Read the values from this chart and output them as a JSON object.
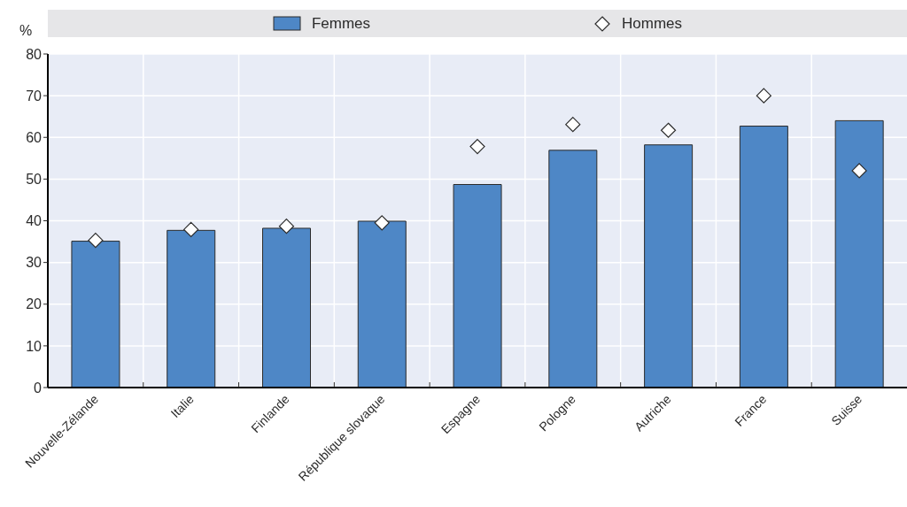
{
  "chart_data": {
    "type": "bar",
    "ylabel": "%",
    "categories": [
      "Nouvelle-Zélande",
      "Italie",
      "Finlande",
      "République slovaque",
      "Espagne",
      "Pologne",
      "Autriche",
      "France",
      "Suisse"
    ],
    "series": [
      {
        "name": "Femmes",
        "color": "#4e87c6",
        "values": [
          35.1,
          37.7,
          38.2,
          39.9,
          48.7,
          56.9,
          58.2,
          62.7,
          64.0
        ]
      },
      {
        "name": "Hommes",
        "type": "scatter",
        "marker": "diamond",
        "color": "#ffffff",
        "x": [
          "Nouvelle-Zélande",
          "Italie",
          "Finlande",
          "République slovaque",
          "Espagne",
          "Pologne",
          "Autriche",
          "France",
          "Suisse"
        ],
        "values": [
          35.3,
          37.9,
          38.7,
          39.5,
          57.8,
          63.1,
          61.7,
          70.0,
          52.0
        ]
      }
    ],
    "ylim": [
      0,
      80
    ],
    "yticks": [
      0,
      10,
      20,
      30,
      40,
      50,
      60,
      70,
      80
    ],
    "grid": true,
    "legend": "top"
  }
}
